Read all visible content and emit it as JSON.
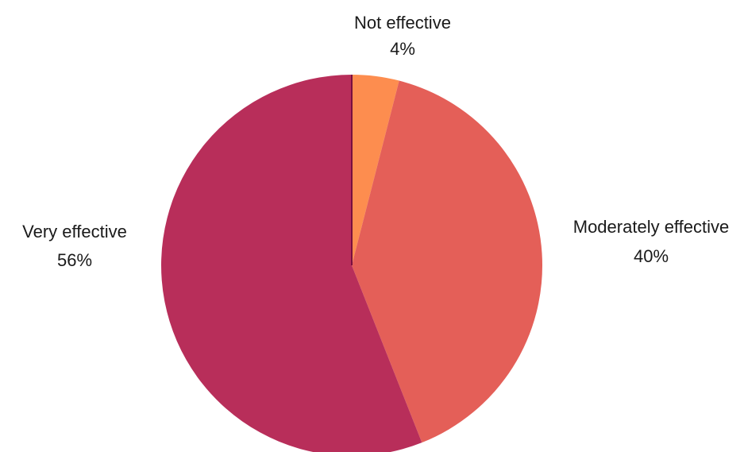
{
  "chart_data": {
    "type": "pie",
    "title": "",
    "slices": [
      {
        "label": "Not effective",
        "value": 4,
        "display": "4%",
        "color": "#fd8d4f"
      },
      {
        "label": "Moderately effective",
        "value": 40,
        "display": "40%",
        "color": "#e45f58"
      },
      {
        "label": "Very effective",
        "value": 56,
        "display": "56%",
        "color": "#b82e5a"
      }
    ],
    "start_angle_deg": 0,
    "direction": "clockwise",
    "boundary_color": "#7a1040"
  }
}
